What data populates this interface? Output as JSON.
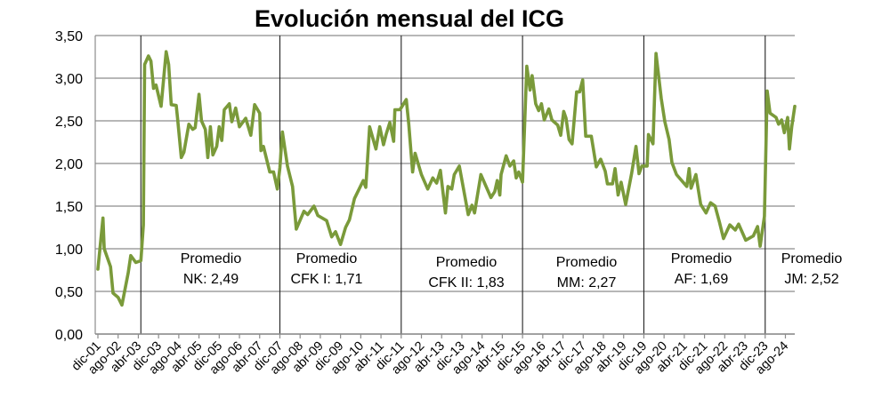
{
  "chart_data": {
    "type": "line",
    "title": "Evolución mensual del ICG",
    "xlabel": "",
    "ylabel": "",
    "ylim": [
      0,
      3.5
    ],
    "yticks": [
      "0,00",
      "0,50",
      "1,00",
      "1,50",
      "2,00",
      "2,50",
      "3,00",
      "3,50"
    ],
    "ytick_values": [
      0,
      0.5,
      1,
      1.5,
      2,
      2.5,
      3,
      3.5
    ],
    "grid": "horizontal",
    "x_unit": "months since dic-01",
    "xtick_labels": [
      "dic-01",
      "ago-02",
      "abr-03",
      "dic-03",
      "ago-04",
      "abr-05",
      "dic-05",
      "ago-06",
      "abr-07",
      "dic-07",
      "ago-08",
      "abr-09",
      "dic-09",
      "ago-10",
      "abr-11",
      "dic-11",
      "ago-12",
      "abr-13",
      "dic-13",
      "ago-14",
      "abr-15",
      "dic-15",
      "ago-16",
      "abr-17",
      "dic-17",
      "ago-18",
      "abr-19",
      "dic-19",
      "ago-20",
      "abr-21",
      "dic-21",
      "ago-22",
      "abr-23",
      "dic-23",
      "ago-24"
    ],
    "xtick_step_months": 8,
    "period_dividers_months": [
      17,
      72,
      120,
      168,
      216,
      264
    ],
    "series": [
      {
        "name": "ICG",
        "color": "#7a9a3a",
        "points": [
          [
            0,
            0.76
          ],
          [
            2,
            1.36
          ],
          [
            2.5,
            1.0
          ],
          [
            5,
            0.79
          ],
          [
            6,
            0.48
          ],
          [
            8,
            0.43
          ],
          [
            9.5,
            0.34
          ],
          [
            12,
            0.72
          ],
          [
            13,
            0.92
          ],
          [
            15,
            0.84
          ],
          [
            17,
            0.86
          ],
          [
            18,
            1.28
          ],
          [
            18.5,
            3.16
          ],
          [
            20,
            3.26
          ],
          [
            21,
            3.2
          ],
          [
            22,
            2.88
          ],
          [
            23,
            2.92
          ],
          [
            25,
            2.67
          ],
          [
            27,
            3.31
          ],
          [
            28,
            3.16
          ],
          [
            29,
            2.69
          ],
          [
            31,
            2.68
          ],
          [
            31.5,
            2.53
          ],
          [
            33,
            2.07
          ],
          [
            34,
            2.13
          ],
          [
            36,
            2.46
          ],
          [
            37.5,
            2.4
          ],
          [
            38.5,
            2.42
          ],
          [
            40,
            2.81
          ],
          [
            41,
            2.5
          ],
          [
            42.5,
            2.4
          ],
          [
            43.5,
            2.07
          ],
          [
            44.5,
            2.43
          ],
          [
            45.5,
            2.1
          ],
          [
            47,
            2.2
          ],
          [
            48,
            2.43
          ],
          [
            49,
            2.27
          ],
          [
            50,
            2.63
          ],
          [
            52,
            2.7
          ],
          [
            53,
            2.49
          ],
          [
            54.5,
            2.65
          ],
          [
            56,
            2.43
          ],
          [
            58.5,
            2.53
          ],
          [
            60.5,
            2.33
          ],
          [
            62,
            2.69
          ],
          [
            64,
            2.59
          ],
          [
            64.5,
            2.15
          ],
          [
            65.5,
            2.2
          ],
          [
            68,
            1.9
          ],
          [
            69.5,
            1.9
          ],
          [
            71,
            1.7
          ],
          [
            72,
            1.95
          ],
          [
            73,
            2.37
          ],
          [
            75,
            1.97
          ],
          [
            77,
            1.73
          ],
          [
            78.5,
            1.23
          ],
          [
            81.5,
            1.44
          ],
          [
            83,
            1.4
          ],
          [
            85.5,
            1.5
          ],
          [
            87,
            1.39
          ],
          [
            90.5,
            1.33
          ],
          [
            92.5,
            1.14
          ],
          [
            94,
            1.2
          ],
          [
            96,
            1.05
          ],
          [
            98,
            1.25
          ],
          [
            99.5,
            1.34
          ],
          [
            101.5,
            1.59
          ],
          [
            105,
            1.8
          ],
          [
            106,
            1.72
          ],
          [
            107.5,
            2.43
          ],
          [
            110,
            2.17
          ],
          [
            111.5,
            2.43
          ],
          [
            113,
            2.22
          ],
          [
            114,
            2.34
          ],
          [
            115.5,
            2.48
          ],
          [
            117,
            2.26
          ],
          [
            117.5,
            2.63
          ],
          [
            119.5,
            2.63
          ],
          [
            122,
            2.75
          ],
          [
            123,
            2.46
          ],
          [
            124.5,
            1.9
          ],
          [
            125.5,
            2.12
          ],
          [
            128,
            1.87
          ],
          [
            130.5,
            1.7
          ],
          [
            132.5,
            1.83
          ],
          [
            134,
            1.77
          ],
          [
            135.5,
            1.92
          ],
          [
            137.5,
            1.42
          ],
          [
            138.5,
            1.73
          ],
          [
            140,
            1.7
          ],
          [
            141,
            1.87
          ],
          [
            143,
            1.97
          ],
          [
            146.5,
            1.4
          ],
          [
            148,
            1.51
          ],
          [
            149,
            1.42
          ],
          [
            151.5,
            1.87
          ],
          [
            155.5,
            1.6
          ],
          [
            157,
            1.67
          ],
          [
            158,
            1.8
          ],
          [
            159,
            1.63
          ],
          [
            159.5,
            1.87
          ],
          [
            161.5,
            2.09
          ],
          [
            163,
            1.97
          ],
          [
            164.5,
            2.03
          ],
          [
            165.5,
            1.83
          ],
          [
            166.5,
            1.9
          ],
          [
            168,
            1.78
          ],
          [
            169.7,
            3.14
          ],
          [
            171,
            2.86
          ],
          [
            171.8,
            3.03
          ],
          [
            173.2,
            2.7
          ],
          [
            174.4,
            2.62
          ],
          [
            175.5,
            2.7
          ],
          [
            176.6,
            2.51
          ],
          [
            178.4,
            2.64
          ],
          [
            179.6,
            2.51
          ],
          [
            181.9,
            2.45
          ],
          [
            183.1,
            2.33
          ],
          [
            184.3,
            2.61
          ],
          [
            185.2,
            2.53
          ],
          [
            186.4,
            2.28
          ],
          [
            187.6,
            2.23
          ],
          [
            189.4,
            2.84
          ],
          [
            190.6,
            2.84
          ],
          [
            191.8,
            2.98
          ],
          [
            193,
            2.32
          ],
          [
            195.2,
            2.32
          ],
          [
            197.2,
            1.96
          ],
          [
            198.9,
            2.05
          ],
          [
            200.7,
            1.91
          ],
          [
            201.6,
            1.76
          ],
          [
            203.6,
            1.76
          ],
          [
            204.6,
            1.94
          ],
          [
            205.8,
            1.63
          ],
          [
            207,
            1.78
          ],
          [
            208.8,
            1.52
          ],
          [
            211.2,
            1.89
          ],
          [
            212.9,
            2.2
          ],
          [
            214.1,
            1.88
          ],
          [
            215.2,
            1.97
          ],
          [
            217.3,
            1.97
          ],
          [
            217.8,
            2.34
          ],
          [
            219.6,
            2.23
          ],
          [
            220.8,
            3.29
          ],
          [
            222.9,
            2.76
          ],
          [
            224.3,
            2.49
          ],
          [
            226,
            2.28
          ],
          [
            227.1,
            2.01
          ],
          [
            228.9,
            1.87
          ],
          [
            233,
            1.73
          ],
          [
            233.9,
            1.94
          ],
          [
            234.7,
            1.71
          ],
          [
            236.6,
            1.87
          ],
          [
            238.5,
            1.52
          ],
          [
            240.6,
            1.42
          ],
          [
            242.4,
            1.54
          ],
          [
            244.2,
            1.5
          ],
          [
            245.9,
            1.31
          ],
          [
            247.5,
            1.12
          ],
          [
            250,
            1.28
          ],
          [
            252.2,
            1.22
          ],
          [
            253.5,
            1.29
          ],
          [
            256.3,
            1.1
          ],
          [
            259.3,
            1.15
          ],
          [
            261,
            1.26
          ],
          [
            262,
            1.03
          ],
          [
            263.7,
            1.38
          ],
          [
            264.8,
            2.85
          ],
          [
            265.9,
            2.59
          ],
          [
            268.3,
            2.54
          ],
          [
            269.3,
            2.46
          ],
          [
            270.5,
            2.51
          ],
          [
            271.6,
            2.36
          ],
          [
            272.9,
            2.54
          ],
          [
            273.6,
            2.17
          ],
          [
            274.5,
            2.43
          ],
          [
            275.7,
            2.67
          ]
        ]
      }
    ],
    "annotations": [
      {
        "line1": "Promedio",
        "line2": "NK: 2,49"
      },
      {
        "line1": "Promedio",
        "line2": "CFK I: 1,71"
      },
      {
        "line1": "Promedio",
        "line2": "CFK II: 1,83"
      },
      {
        "line1": "Promedio",
        "line2": "MM: 2,27"
      },
      {
        "line1": "Promedio",
        "line2": "AF: 1,69"
      },
      {
        "line1": "Promedio",
        "line2": "JM: 2,52"
      }
    ]
  }
}
